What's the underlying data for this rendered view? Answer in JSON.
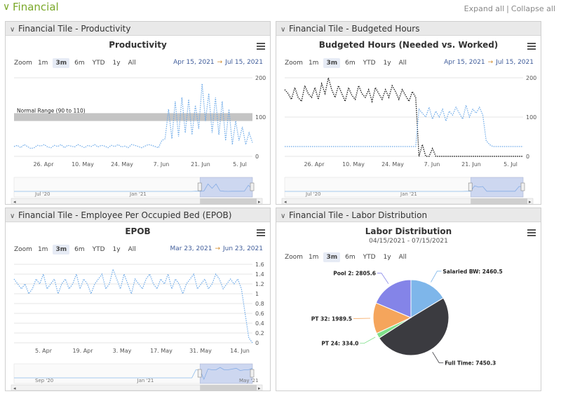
{
  "section": {
    "title": "Financial",
    "expand_all": "Expand all",
    "separator": "|",
    "collapse_all": "Collapse all"
  },
  "tiles": [
    {
      "header": "Financial Tile - Productivity",
      "chart_title": "Productivity",
      "zoom_label": "Zoom",
      "zoom_buttons": [
        "1m",
        "3m",
        "6m",
        "YTD",
        "1y",
        "All"
      ],
      "selected_zoom": "3m",
      "range_from": "Apr 15, 2021",
      "range_to": "Jul 15, 2021",
      "chart_data": {
        "type": "line",
        "x_tick_labels": [
          "26. Apr",
          "10. May",
          "24. May",
          "7. Jun",
          "21. Jun",
          "5. Jul"
        ],
        "y_tick_labels": [
          "0",
          "100",
          "200"
        ],
        "ylim": [
          0,
          200
        ],
        "plot_band": {
          "from": 90,
          "to": 110,
          "label": "Normal Range (90 to 110)"
        },
        "series": [
          {
            "color": "#6aa8e8",
            "values": [
              25,
              28,
              22,
              30,
              25,
              20,
              22,
              28,
              26,
              30,
              24,
              22,
              28,
              25,
              30,
              22,
              28,
              26,
              24,
              30,
              26,
              22,
              28,
              25,
              30,
              24,
              28,
              26,
              22,
              28,
              25,
              30,
              24,
              26,
              22,
              30,
              28,
              25,
              22,
              26,
              30,
              28,
              25,
              22,
              40,
              45,
              120,
              45,
              140,
              50,
              150,
              60,
              145,
              55,
              130,
              70,
              185,
              90,
              160,
              60,
              150,
              55,
              140,
              40,
              120,
              30,
              90,
              40,
              75,
              30,
              60,
              35
            ]
          }
        ],
        "navigator_labels": [
          "Jul '20",
          "Jan '21"
        ]
      }
    },
    {
      "header": "Financial Tile - Budgeted Hours",
      "chart_title": "Budgeted Hours (Needed vs. Worked)",
      "zoom_label": "Zoom",
      "zoom_buttons": [
        "1m",
        "3m",
        "6m",
        "YTD",
        "1y",
        "All"
      ],
      "selected_zoom": "3m",
      "range_from": "Apr 15, 2021",
      "range_to": "Jul 15, 2021",
      "chart_data": {
        "type": "line",
        "x_tick_labels": [
          "26. Apr",
          "10. May",
          "24. May",
          "7. Jun",
          "21. Jun",
          "5. Jul"
        ],
        "y_tick_labels": [
          "0",
          "100",
          "200"
        ],
        "ylim": [
          0,
          200
        ],
        "series": [
          {
            "color": "#222222",
            "values": [
              170,
              160,
              145,
              175,
              150,
              140,
              180,
              160,
              150,
              175,
              145,
              185,
              160,
              200,
              170,
              150,
              180,
              160,
              140,
              175,
              155,
              145,
              180,
              160,
              150,
              170,
              140,
              175,
              160,
              145,
              170,
              150,
              180,
              165,
              145,
              170,
              155,
              140,
              165,
              150,
              0,
              30,
              0,
              0,
              20,
              0,
              0,
              0,
              0,
              0,
              0,
              0,
              0,
              0,
              0,
              0,
              0,
              0,
              0,
              0,
              0,
              0,
              0,
              0,
              0,
              0,
              0,
              0,
              0,
              0,
              0,
              0
            ]
          },
          {
            "color": "#6aa8e8",
            "values": [
              25,
              25,
              25,
              25,
              25,
              25,
              25,
              25,
              25,
              25,
              25,
              25,
              25,
              25,
              25,
              25,
              25,
              25,
              25,
              25,
              25,
              25,
              25,
              25,
              25,
              25,
              25,
              25,
              25,
              25,
              25,
              25,
              25,
              25,
              25,
              25,
              25,
              25,
              25,
              25,
              120,
              110,
              100,
              125,
              95,
              115,
              100,
              120,
              90,
              115,
              105,
              125,
              110,
              95,
              130,
              100,
              120,
              110,
              125,
              105,
              40,
              30,
              25,
              25,
              25,
              25,
              25,
              25,
              25,
              25,
              25,
              25
            ]
          }
        ],
        "navigator_labels": [
          "Jul '20",
          "Jan '21"
        ]
      }
    },
    {
      "header": "Financial Tile - Employee Per Occupied Bed (EPOB)",
      "chart_title": "EPOB",
      "zoom_label": "Zoom",
      "zoom_buttons": [
        "1m",
        "3m",
        "6m",
        "YTD",
        "1y",
        "All"
      ],
      "selected_zoom": "3m",
      "range_from": "Mar 23, 2021",
      "range_to": "Jun 23, 2021",
      "chart_data": {
        "type": "line",
        "x_tick_labels": [
          "5. Apr",
          "19. Apr",
          "3. May",
          "17. May",
          "31. May",
          "14. Jun"
        ],
        "y_tick_labels": [
          "0",
          "0.2",
          "0.4",
          "0.6",
          "0.8",
          "1",
          "1.2",
          "1.4",
          "1.6"
        ],
        "ylim": [
          0,
          1.6
        ],
        "series": [
          {
            "color": "#6aa8e8",
            "values": [
              1.3,
              1.2,
              1.1,
              1.2,
              1.0,
              1.1,
              1.3,
              1.2,
              1.4,
              1.1,
              1.2,
              1.3,
              1.0,
              1.2,
              1.3,
              1.1,
              1.2,
              1.4,
              1.1,
              1.3,
              1.2,
              1.0,
              1.2,
              1.3,
              1.4,
              1.1,
              1.2,
              1.5,
              1.3,
              1.1,
              1.4,
              1.2,
              1.0,
              1.3,
              1.2,
              1.1,
              1.3,
              1.4,
              1.2,
              1.1,
              1.3,
              1.2,
              1.4,
              1.1,
              1.3,
              1.2,
              1.0,
              1.2,
              1.3,
              1.4,
              1.1,
              1.2,
              1.3,
              1.1,
              1.2,
              1.4,
              1.3,
              1.1,
              1.2,
              1.3,
              1.2,
              1.3,
              1.1,
              0.6,
              0.1,
              0.0
            ]
          }
        ],
        "navigator_labels": [
          "Sep '20",
          "Jan '21",
          "May '21"
        ]
      }
    },
    {
      "header": "Financial Tile - Labor Distribution",
      "chart_title": "Labor Distribution",
      "chart_subtitle": "04/15/2021 - 07/15/2021",
      "zoom_label": "Zoom",
      "zoom_buttons": [
        "1m",
        "3m",
        "6m",
        "YTD",
        "1y",
        "All"
      ],
      "selected_zoom": "3m",
      "chart_data": {
        "type": "pie",
        "slices": [
          {
            "name": "Salaried BW",
            "value": 2460.5,
            "color": "#7eb6ea"
          },
          {
            "name": "Full Time",
            "value": 7450.3,
            "color": "#3b3b40"
          },
          {
            "name": "PT 24",
            "value": 334.0,
            "color": "#7fe08a"
          },
          {
            "name": "PT 32",
            "value": 1989.5,
            "color": "#f5a55c"
          },
          {
            "name": "Pool 2",
            "value": 2805.6,
            "color": "#8484e8"
          }
        ]
      }
    }
  ]
}
